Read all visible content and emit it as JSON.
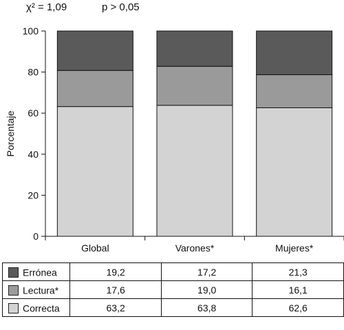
{
  "stats": {
    "chi": "χ² = 1,09",
    "p": "p > 0,05"
  },
  "chart_data": {
    "type": "bar",
    "stacked": true,
    "percent": true,
    "categories": [
      "Global",
      "Varones*",
      "Mujeres*"
    ],
    "series": [
      {
        "name": "Correcta",
        "values": [
          63.2,
          63.8,
          62.6
        ],
        "color": "#d3d3d3"
      },
      {
        "name": "Lectura*",
        "values": [
          17.6,
          19.0,
          16.1
        ],
        "color": "#9a9a9a"
      },
      {
        "name": "Errónea",
        "values": [
          19.2,
          17.2,
          21.3
        ],
        "color": "#5a5a5a"
      }
    ],
    "value_labels": {
      "Errónea": [
        "19,2",
        "17,2",
        "21,3"
      ],
      "Lectura*": [
        "17,6",
        "19,0",
        "16,1"
      ],
      "Correcta": [
        "63,2",
        "63,8",
        "62,6"
      ]
    },
    "table_order": [
      "Errónea",
      "Lectura*",
      "Correcta"
    ],
    "ylabel": "Porcentaje",
    "ylim": [
      0,
      100
    ],
    "yticks": [
      0,
      20,
      40,
      60,
      80,
      100
    ],
    "grid": false,
    "legend": "table-below"
  }
}
